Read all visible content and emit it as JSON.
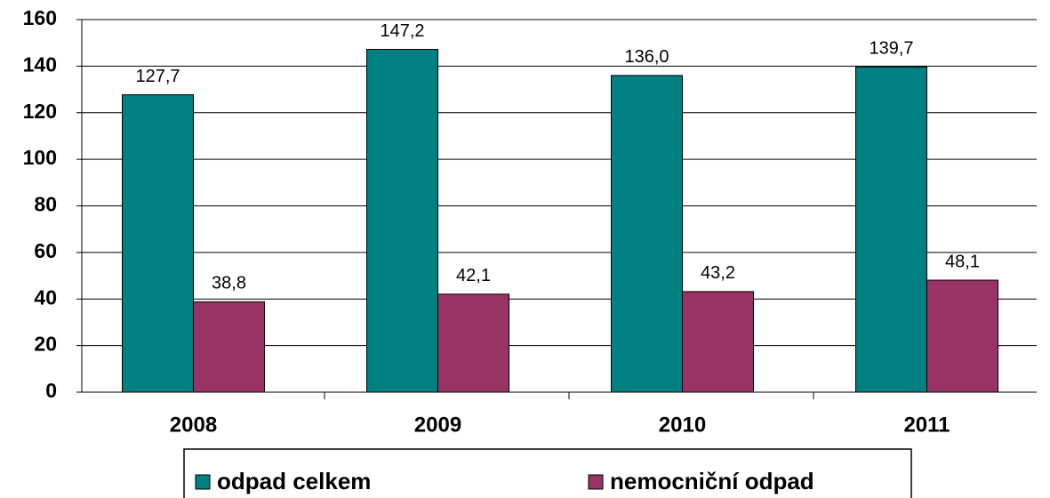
{
  "chart_data": {
    "type": "bar",
    "categories": [
      "2008",
      "2009",
      "2010",
      "2011"
    ],
    "series": [
      {
        "name": "odpad celkem",
        "color": "#008080",
        "values": [
          127.7,
          147.2,
          136.0,
          139.7
        ],
        "value_labels": [
          "127,7",
          "147,2",
          "136,0",
          "139,7"
        ]
      },
      {
        "name": "nemocniční odpad",
        "color": "#993366",
        "values": [
          38.8,
          42.1,
          43.2,
          48.1
        ],
        "value_labels": [
          "38,8",
          "42,1",
          "43,2",
          "48,1"
        ]
      }
    ],
    "ylim": [
      0,
      160
    ],
    "yticks": [
      0,
      20,
      40,
      60,
      80,
      100,
      120,
      140,
      160
    ],
    "grid": true
  }
}
